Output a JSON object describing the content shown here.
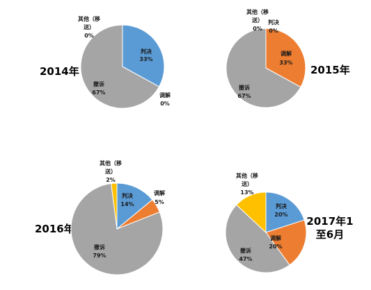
{
  "chart_data": [
    {
      "type": "pie",
      "title": "2014年",
      "colors": [
        "#5b9bd5",
        "#ed7d31",
        "#a5a5a5",
        "#ffc000"
      ],
      "slices": [
        {
          "label": "判决",
          "value": 33,
          "text": "33%"
        },
        {
          "label": "调解",
          "value": 0,
          "text": "0%"
        },
        {
          "label": "撤诉",
          "value": 67,
          "text": "67%"
        },
        {
          "label": "其他（移送）",
          "value": 0,
          "text": "0%"
        }
      ]
    },
    {
      "type": "pie",
      "title": "2015年",
      "colors": [
        "#5b9bd5",
        "#ed7d31",
        "#a5a5a5",
        "#ffc000"
      ],
      "slices": [
        {
          "label": "判决",
          "value": 0,
          "text": "0%"
        },
        {
          "label": "调解",
          "value": 33,
          "text": "33%"
        },
        {
          "label": "撤诉",
          "value": 67,
          "text": "67%"
        },
        {
          "label": "其他（移送）",
          "value": 0,
          "text": "0%"
        }
      ]
    },
    {
      "type": "pie",
      "title": "2016年",
      "colors": [
        "#5b9bd5",
        "#ed7d31",
        "#a5a5a5",
        "#ffc000"
      ],
      "slices": [
        {
          "label": "判决",
          "value": 14,
          "text": "14%"
        },
        {
          "label": "调解",
          "value": 5,
          "text": "5%"
        },
        {
          "label": "撤诉",
          "value": 79,
          "text": "79%"
        },
        {
          "label": "其他（移送）",
          "value": 2,
          "text": "2%"
        }
      ]
    },
    {
      "type": "pie",
      "title": "2017年1至6月",
      "colors": [
        "#5b9bd5",
        "#ed7d31",
        "#a5a5a5",
        "#ffc000"
      ],
      "slices": [
        {
          "label": "判决",
          "value": 20,
          "text": "20%"
        },
        {
          "label": "调解",
          "value": 20,
          "text": "20%"
        },
        {
          "label": "撤诉",
          "value": 47,
          "text": "47%"
        },
        {
          "label": "其他（移送）",
          "value": 13,
          "text": "13%"
        }
      ]
    }
  ]
}
